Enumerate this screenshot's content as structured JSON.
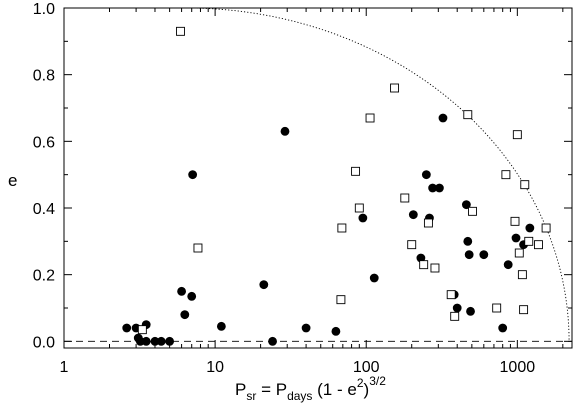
{
  "chart_data": {
    "type": "scatter",
    "title": "",
    "xscale": "log",
    "xlim": [
      1,
      2300
    ],
    "ylim": [
      -0.02,
      1.0
    ],
    "x_ticks": [
      1,
      10,
      100,
      1000
    ],
    "x_tick_labels": [
      "1",
      "10",
      "100",
      "1000"
    ],
    "y_ticks": [
      0.0,
      0.2,
      0.4,
      0.6,
      0.8,
      1.0
    ],
    "y_tick_labels": [
      "0.0",
      "0.2",
      "0.4",
      "0.6",
      "0.8",
      "1.0"
    ],
    "ylabel": "e",
    "xlabel": {
      "p": "P",
      "p_sub": "sr",
      "eq": " = P",
      "days_sub": "days",
      "open": " (1 - e",
      "sq_sup": "2",
      "close": ")",
      "exp_sup": "3/2"
    },
    "grid": false,
    "legend": "none",
    "reference_lines": [
      {
        "type": "horizontal",
        "y": 0.0,
        "style": "dashed"
      },
      {
        "type": "boundary-curve",
        "style": "dotted",
        "x_at_top": 6.5,
        "x_at_bottom": 2200
      }
    ],
    "series": [
      {
        "marker": "filled-circle",
        "color": "#000000",
        "points": [
          [
            2.6,
            0.04
          ],
          [
            3.0,
            0.04
          ],
          [
            3.1,
            0.01
          ],
          [
            3.2,
            0.0
          ],
          [
            3.5,
            0.05
          ],
          [
            3.5,
            0.0
          ],
          [
            4.0,
            0.0
          ],
          [
            4.4,
            0.0
          ],
          [
            5.0,
            0.0
          ],
          [
            6.0,
            0.15
          ],
          [
            6.3,
            0.08
          ],
          [
            7.0,
            0.135
          ],
          [
            7.1,
            0.5
          ],
          [
            11.0,
            0.045
          ],
          [
            21.0,
            0.17
          ],
          [
            24.0,
            0.0
          ],
          [
            29.0,
            0.63
          ],
          [
            40.0,
            0.04
          ],
          [
            63.0,
            0.03
          ],
          [
            95.0,
            0.37
          ],
          [
            113.0,
            0.19
          ],
          [
            205.0,
            0.38
          ],
          [
            230.0,
            0.25
          ],
          [
            250.0,
            0.5
          ],
          [
            262.0,
            0.37
          ],
          [
            275.0,
            0.46
          ],
          [
            305.0,
            0.46
          ],
          [
            322.0,
            0.67
          ],
          [
            382.0,
            0.14
          ],
          [
            400.0,
            0.1
          ],
          [
            460.0,
            0.41
          ],
          [
            470.0,
            0.3
          ],
          [
            480.0,
            0.26
          ],
          [
            490.0,
            0.09
          ],
          [
            600.0,
            0.26
          ],
          [
            800.0,
            0.04
          ],
          [
            870.0,
            0.23
          ],
          [
            980.0,
            0.31
          ],
          [
            1100.0,
            0.29
          ],
          [
            1210.0,
            0.34
          ]
        ]
      },
      {
        "marker": "open-square",
        "color": "#000000",
        "points": [
          [
            3.3,
            0.035
          ],
          [
            5.9,
            0.93
          ],
          [
            7.7,
            0.28
          ],
          [
            68.0,
            0.125
          ],
          [
            69.0,
            0.34
          ],
          [
            85.0,
            0.51
          ],
          [
            90.0,
            0.4
          ],
          [
            106.0,
            0.67
          ],
          [
            154.0,
            0.76
          ],
          [
            180.0,
            0.43
          ],
          [
            200.0,
            0.29
          ],
          [
            240.0,
            0.23
          ],
          [
            258.0,
            0.355
          ],
          [
            285.0,
            0.22
          ],
          [
            365.0,
            0.14
          ],
          [
            385.0,
            0.075
          ],
          [
            470.0,
            0.68
          ],
          [
            505.0,
            0.39
          ],
          [
            730.0,
            0.1
          ],
          [
            840.0,
            0.5
          ],
          [
            965.0,
            0.36
          ],
          [
            1000.0,
            0.62
          ],
          [
            1030.0,
            0.265
          ],
          [
            1080.0,
            0.2
          ],
          [
            1100.0,
            0.095
          ],
          [
            1120.0,
            0.47
          ],
          [
            1190.0,
            0.3
          ],
          [
            1380.0,
            0.29
          ],
          [
            1550.0,
            0.34
          ]
        ]
      }
    ]
  }
}
